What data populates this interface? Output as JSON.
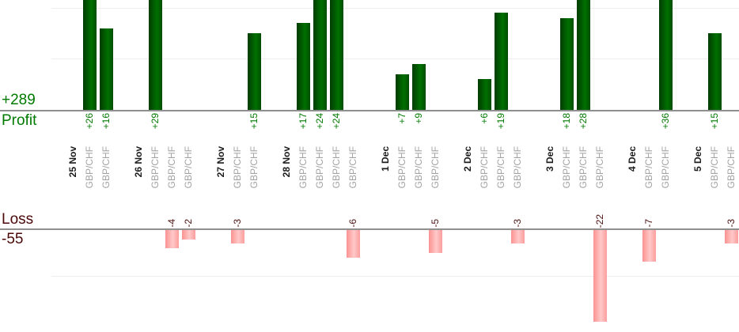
{
  "chart_data": {
    "type": "bar",
    "description": "Daily trade profit and loss bars per instrument",
    "axes": {
      "profit_label": "Profit",
      "profit_total": "+289",
      "loss_label": "Loss",
      "loss_total": "-55",
      "profit_gridline_values": [
        10,
        20
      ],
      "loss_gridline_values": [
        -10
      ],
      "legend_position": "none",
      "grid": "horizontal-light"
    },
    "colors": {
      "profit_bar": "#006f00",
      "loss_bar": "#ffb0b0",
      "profit_text": "#007800",
      "loss_text": "#4d0f0f",
      "date_text": "#1c1c1c",
      "instrument_text": "#a3a3a3",
      "axis_line": "#8f8f8f",
      "gridline": "#ededed"
    },
    "groups": [
      {
        "date": "25 Nov",
        "trades": [
          {
            "instrument": "GBP/CHF",
            "value": 26
          },
          {
            "instrument": "GBP/CHF",
            "value": 16
          }
        ]
      },
      {
        "date": "26 Nov",
        "trades": [
          {
            "instrument": "GBP/CHF",
            "value": 29
          },
          {
            "instrument": "GBP/CHF",
            "value": -4
          },
          {
            "instrument": "GBP/CHF",
            "value": -2
          }
        ]
      },
      {
        "date": "27 Nov",
        "trades": [
          {
            "instrument": "GBP/CHF",
            "value": -3
          },
          {
            "instrument": "GBP/CHF",
            "value": 15
          }
        ]
      },
      {
        "date": "28 Nov",
        "trades": [
          {
            "instrument": "GBP/CHF",
            "value": 17
          },
          {
            "instrument": "GBP/CHF",
            "value": 24
          },
          {
            "instrument": "GBP/CHF",
            "value": 24
          },
          {
            "instrument": "GBP/CHF",
            "value": -6
          }
        ]
      },
      {
        "date": "1 Dec",
        "trades": [
          {
            "instrument": "GBP/CHF",
            "value": 7
          },
          {
            "instrument": "GBP/CHF",
            "value": 9
          },
          {
            "instrument": "GBP/CHF",
            "value": -5
          }
        ]
      },
      {
        "date": "2 Dec",
        "trades": [
          {
            "instrument": "GBP/CHF",
            "value": 6
          },
          {
            "instrument": "GBP/CHF",
            "value": 19
          },
          {
            "instrument": "GBP/CHF",
            "value": -3
          }
        ]
      },
      {
        "date": "3 Dec",
        "trades": [
          {
            "instrument": "GBP/CHF",
            "value": 18
          },
          {
            "instrument": "GBP/CHF",
            "value": 28
          },
          {
            "instrument": "GBP/CHF",
            "value": -22
          }
        ]
      },
      {
        "date": "4 Dec",
        "trades": [
          {
            "instrument": "GBP/CHF",
            "value": -7
          },
          {
            "instrument": "GBP/CHF",
            "value": 36
          }
        ]
      },
      {
        "date": "5 Dec",
        "trades": [
          {
            "instrument": "GBP/CHF",
            "value": 15
          },
          {
            "instrument": "GBP/CHF",
            "value": -3
          }
        ]
      }
    ]
  }
}
